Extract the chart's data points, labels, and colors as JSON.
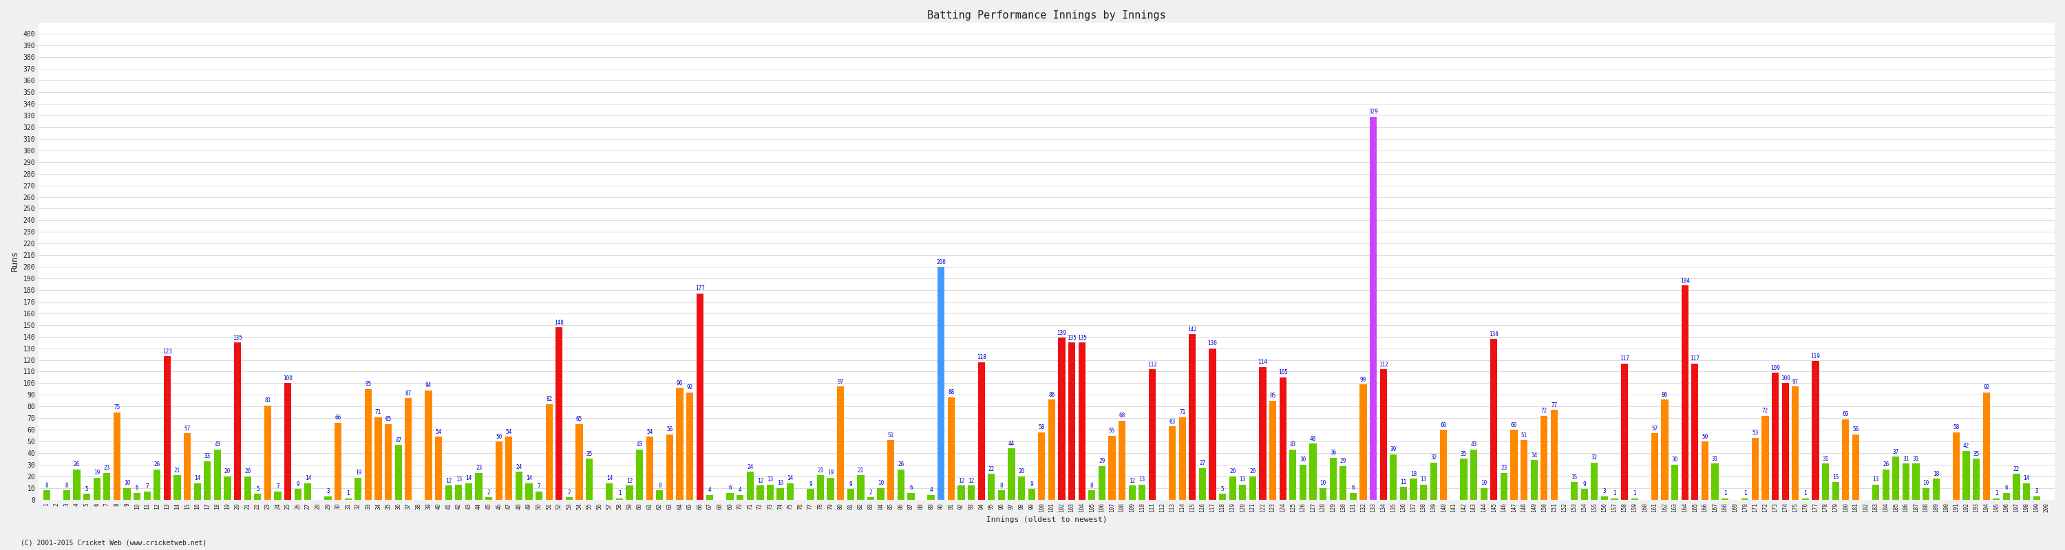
{
  "title": "Batting Performance Innings by Innings",
  "xlabel": "Innings (oldest to newest)",
  "ylabel": "Runs",
  "ylim": [
    0,
    410
  ],
  "ytick_step": 10,
  "bg_color": "#f0f0f0",
  "plot_bg": "#ffffff",
  "grid_color": "#cccccc",
  "label_color": "#0000cc",
  "label_fontsize": 5.5,
  "footer": "(C) 2001-2015 Cricket Web (www.cricketweb.net)",
  "innings": [
    1,
    2,
    3,
    4,
    5,
    6,
    7,
    8,
    9,
    10,
    11,
    12,
    13,
    14,
    15,
    16,
    17,
    18,
    19,
    20,
    21,
    22,
    23,
    24,
    25,
    26,
    27,
    28,
    29,
    30,
    31,
    32,
    33,
    34,
    35,
    36,
    37,
    38,
    39,
    40,
    41,
    42,
    43,
    44,
    45,
    46,
    47,
    48,
    49,
    50,
    51,
    52,
    53,
    54,
    55,
    56,
    57,
    58,
    59,
    60,
    61,
    62,
    63,
    64,
    65,
    66,
    67,
    68,
    69,
    70,
    71,
    72,
    73,
    74,
    75,
    76,
    77,
    78,
    79,
    80,
    81,
    82,
    83,
    84,
    85,
    86,
    87,
    88,
    89,
    90,
    91,
    92,
    93,
    94,
    95,
    96,
    97,
    98,
    99,
    100,
    101,
    102,
    103,
    104,
    105,
    106,
    107,
    108,
    109,
    110,
    111,
    112,
    113,
    114,
    115,
    116,
    117,
    118,
    119,
    120,
    121,
    122,
    123,
    124,
    125,
    126,
    127,
    128,
    129,
    130,
    131,
    132,
    133,
    134,
    135,
    136,
    137,
    138,
    139,
    140,
    141,
    142,
    143,
    144,
    145,
    146,
    147,
    148,
    149,
    150,
    151,
    152,
    153,
    154,
    155,
    156,
    157,
    158,
    159,
    160,
    161,
    162,
    163,
    164,
    165,
    166,
    167,
    168,
    169,
    170,
    171,
    172,
    173,
    174,
    175,
    176,
    177,
    178,
    179,
    180,
    181,
    182,
    183,
    184,
    185,
    186,
    187,
    188,
    189,
    190,
    191,
    192,
    193,
    194,
    195,
    196,
    197,
    198,
    199,
    200
  ],
  "scores": [
    8,
    0,
    8,
    26,
    5,
    19,
    23,
    75,
    10,
    6,
    7,
    26,
    123,
    21,
    57,
    14,
    33,
    43,
    20,
    135,
    20,
    5,
    81,
    7,
    100,
    9,
    14,
    0,
    3,
    66,
    1,
    19,
    95,
    71,
    65,
    47,
    87,
    0,
    94,
    54,
    12,
    13,
    14,
    23,
    2,
    50,
    54,
    24,
    14,
    7,
    82,
    148,
    2,
    65,
    35,
    0,
    14,
    1,
    12,
    43,
    54,
    8,
    56,
    96,
    92,
    177,
    4,
    0,
    6,
    4,
    24,
    12,
    13,
    10,
    14,
    0,
    9,
    21,
    19,
    97,
    9,
    21,
    2,
    10,
    51,
    26,
    6,
    0,
    4,
    200,
    88,
    12,
    12,
    118,
    22,
    8,
    44,
    20,
    9,
    58,
    86,
    139,
    135,
    135,
    8,
    29,
    55,
    68,
    12,
    13,
    112,
    0,
    63,
    71,
    142,
    27,
    130,
    5,
    20,
    13,
    20,
    114,
    85,
    105,
    43,
    30,
    48,
    10,
    36,
    29,
    6,
    99,
    329,
    112,
    39,
    11,
    18,
    13,
    32,
    60,
    0,
    35,
    43,
    10,
    138,
    23,
    60,
    51,
    34,
    72,
    77,
    0,
    15,
    9,
    32,
    3,
    1,
    117,
    1,
    0,
    57,
    86,
    30,
    184,
    117,
    50,
    31,
    1,
    0,
    1,
    53,
    72,
    109,
    100,
    97,
    1,
    119,
    31,
    15,
    69,
    56,
    0,
    13,
    26,
    37,
    31,
    31,
    10,
    18,
    0,
    58,
    42,
    35,
    92,
    1,
    6,
    22,
    14,
    3,
    0
  ],
  "color_green": "#66cc00",
  "color_orange": "#ff8800",
  "color_red": "#ee1111",
  "color_blue": "#4499ff",
  "color_purple": "#cc44ff"
}
